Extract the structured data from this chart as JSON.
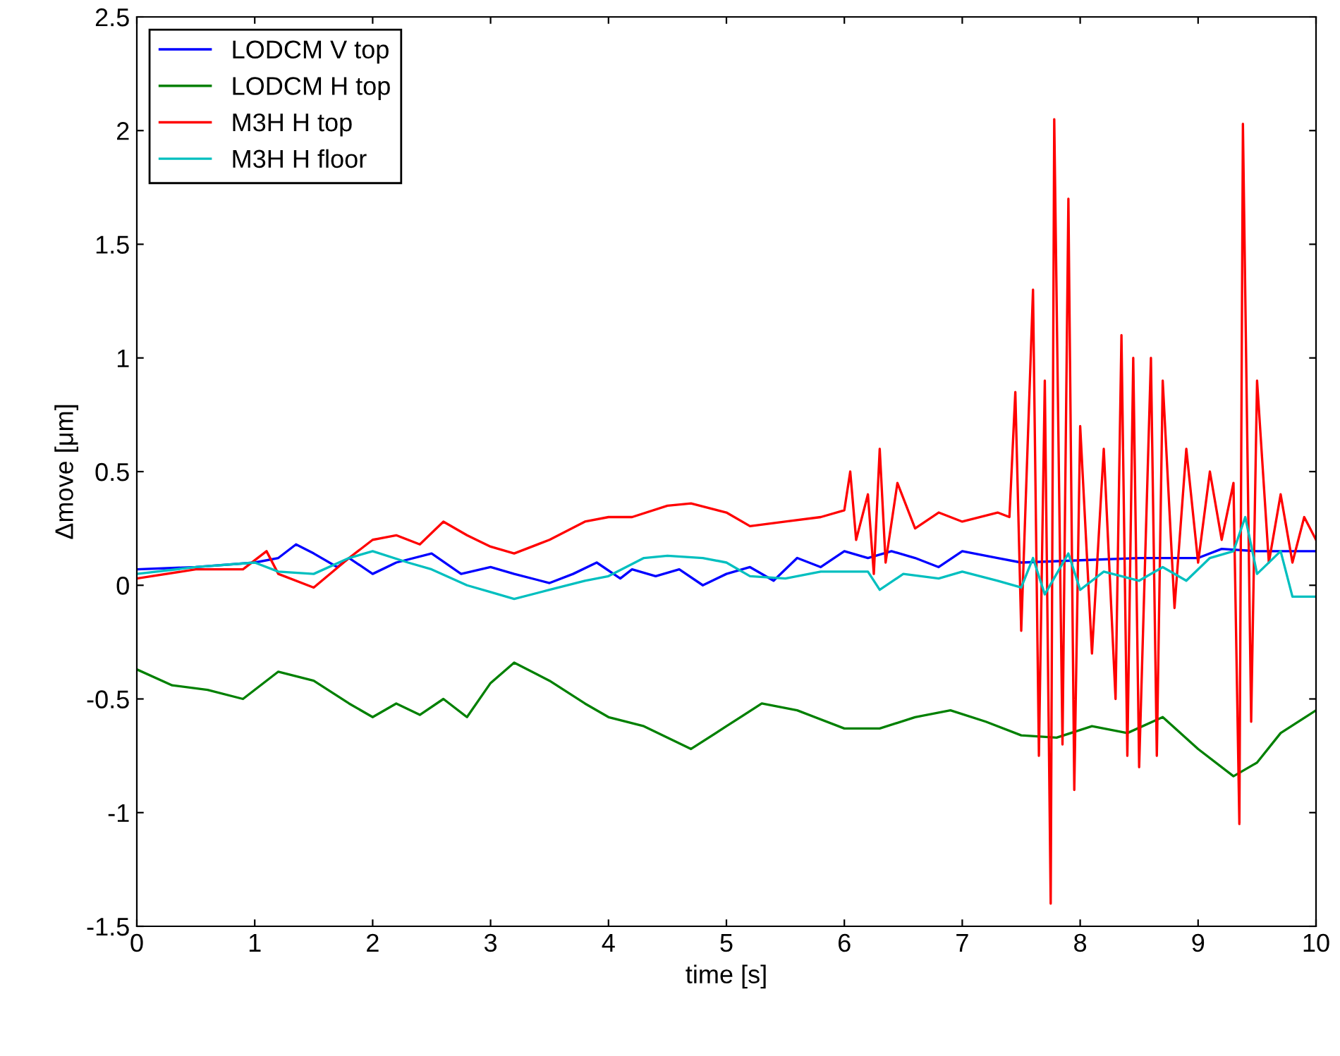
{
  "chart_data": {
    "type": "line",
    "xlabel": "time [s]",
    "ylabel": "Δmove [μm]",
    "xlim": [
      0,
      10
    ],
    "ylim": [
      -1.5,
      2.5
    ],
    "xticks": [
      0,
      1,
      2,
      3,
      4,
      5,
      6,
      7,
      8,
      9,
      10
    ],
    "yticks": [
      -1.5,
      -1,
      -0.5,
      0,
      0.5,
      1,
      1.5,
      2,
      2.5
    ],
    "grid": false,
    "legend": "top left",
    "line_style": "solid",
    "marker": "none",
    "series": [
      {
        "name": "LODCM V top",
        "color": "#0000ff",
        "x": [
          0,
          0.5,
          1,
          1.2,
          1.35,
          1.5,
          1.7,
          1.8,
          2,
          2.2,
          2.5,
          2.75,
          3,
          3.2,
          3.5,
          3.7,
          3.9,
          4.1,
          4.2,
          4.4,
          4.6,
          4.8,
          5,
          5.2,
          5.4,
          5.6,
          5.8,
          6,
          6.2,
          6.4,
          6.6,
          6.8,
          7,
          7.3,
          7.5,
          8,
          8.5,
          9,
          9.2,
          9.5,
          10
        ],
        "values": [
          0.07,
          0.08,
          0.1,
          0.12,
          0.18,
          0.14,
          0.08,
          0.12,
          0.05,
          0.1,
          0.14,
          0.05,
          0.08,
          0.05,
          0.01,
          0.05,
          0.1,
          0.03,
          0.07,
          0.04,
          0.07,
          0,
          0.05,
          0.08,
          0.02,
          0.12,
          0.08,
          0.15,
          0.12,
          0.15,
          0.12,
          0.08,
          0.15,
          0.12,
          0.1,
          0.11,
          0.12,
          0.12,
          0.16,
          0.15,
          0.15
        ]
      },
      {
        "name": "LODCM H top",
        "color": "#008000",
        "x": [
          0,
          0.3,
          0.6,
          0.9,
          1.2,
          1.5,
          1.8,
          2,
          2.2,
          2.4,
          2.6,
          2.8,
          3,
          3.2,
          3.5,
          3.8,
          4,
          4.3,
          4.7,
          5,
          5.3,
          5.6,
          6,
          6.3,
          6.6,
          6.9,
          7.2,
          7.5,
          7.8,
          8.1,
          8.4,
          8.7,
          9,
          9.3,
          9.5,
          9.7,
          10
        ],
        "values": [
          -0.37,
          -0.44,
          -0.46,
          -0.5,
          -0.38,
          -0.42,
          -0.52,
          -0.58,
          -0.52,
          -0.57,
          -0.5,
          -0.58,
          -0.43,
          -0.34,
          -0.42,
          -0.52,
          -0.58,
          -0.62,
          -0.72,
          -0.62,
          -0.52,
          -0.55,
          -0.63,
          -0.63,
          -0.58,
          -0.55,
          -0.6,
          -0.66,
          -0.67,
          -0.62,
          -0.65,
          -0.58,
          -0.72,
          -0.84,
          -0.78,
          -0.65,
          -0.55
        ]
      },
      {
        "name": "M3H H top",
        "color": "#ff0000",
        "x": [
          0,
          0.5,
          0.9,
          1.1,
          1.2,
          1.5,
          1.8,
          2,
          2.2,
          2.4,
          2.6,
          2.8,
          3,
          3.2,
          3.5,
          3.8,
          4,
          4.2,
          4.5,
          4.7,
          5,
          5.2,
          5.5,
          5.8,
          6,
          6.05,
          6.1,
          6.2,
          6.25,
          6.3,
          6.35,
          6.45,
          6.6,
          6.8,
          7,
          7.3,
          7.4,
          7.45,
          7.5,
          7.6,
          7.65,
          7.7,
          7.75,
          7.78,
          7.85,
          7.9,
          7.95,
          8,
          8.1,
          8.2,
          8.3,
          8.35,
          8.4,
          8.45,
          8.5,
          8.6,
          8.65,
          8.7,
          8.8,
          8.9,
          9,
          9.1,
          9.2,
          9.3,
          9.35,
          9.38,
          9.45,
          9.5,
          9.6,
          9.7,
          9.8,
          9.9,
          10
        ],
        "values": [
          0.03,
          0.07,
          0.07,
          0.15,
          0.05,
          -0.01,
          0.12,
          0.2,
          0.22,
          0.18,
          0.28,
          0.22,
          0.17,
          0.14,
          0.2,
          0.28,
          0.3,
          0.3,
          0.35,
          0.36,
          0.32,
          0.26,
          0.28,
          0.3,
          0.33,
          0.5,
          0.2,
          0.4,
          0.05,
          0.6,
          0.1,
          0.45,
          0.25,
          0.32,
          0.28,
          0.32,
          0.3,
          0.85,
          -0.2,
          1.3,
          -0.75,
          0.9,
          -1.4,
          2.05,
          -0.7,
          1.7,
          -0.9,
          0.7,
          -0.3,
          0.6,
          -0.5,
          1.1,
          -0.75,
          1.0,
          -0.8,
          1.0,
          -0.75,
          0.9,
          -0.1,
          0.6,
          0.1,
          0.5,
          0.2,
          0.45,
          -1.05,
          2.03,
          -0.6,
          0.9,
          0.1,
          0.4,
          0.1,
          0.3,
          0.2
        ]
      },
      {
        "name": "M3H H floor",
        "color": "#00bfbf",
        "x": [
          0,
          0.5,
          1,
          1.2,
          1.5,
          1.8,
          2,
          2.3,
          2.5,
          2.8,
          3,
          3.2,
          3.5,
          3.8,
          4,
          4.3,
          4.5,
          4.8,
          5,
          5.2,
          5.5,
          5.8,
          6.2,
          6.3,
          6.5,
          6.8,
          7,
          7.3,
          7.5,
          7.6,
          7.7,
          7.9,
          8,
          8.2,
          8.5,
          8.7,
          8.9,
          9.1,
          9.3,
          9.4,
          9.5,
          9.7,
          9.8,
          10
        ],
        "values": [
          0.05,
          0.08,
          0.1,
          0.06,
          0.05,
          0.12,
          0.15,
          0.1,
          0.07,
          0,
          -0.03,
          -0.06,
          -0.02,
          0.02,
          0.04,
          0.12,
          0.13,
          0.12,
          0.1,
          0.04,
          0.03,
          0.06,
          0.06,
          -0.02,
          0.05,
          0.03,
          0.06,
          0.02,
          -0.01,
          0.12,
          -0.04,
          0.14,
          -0.02,
          0.06,
          0.02,
          0.08,
          0.02,
          0.12,
          0.15,
          0.3,
          0.05,
          0.15,
          -0.05,
          -0.05
        ]
      }
    ]
  }
}
